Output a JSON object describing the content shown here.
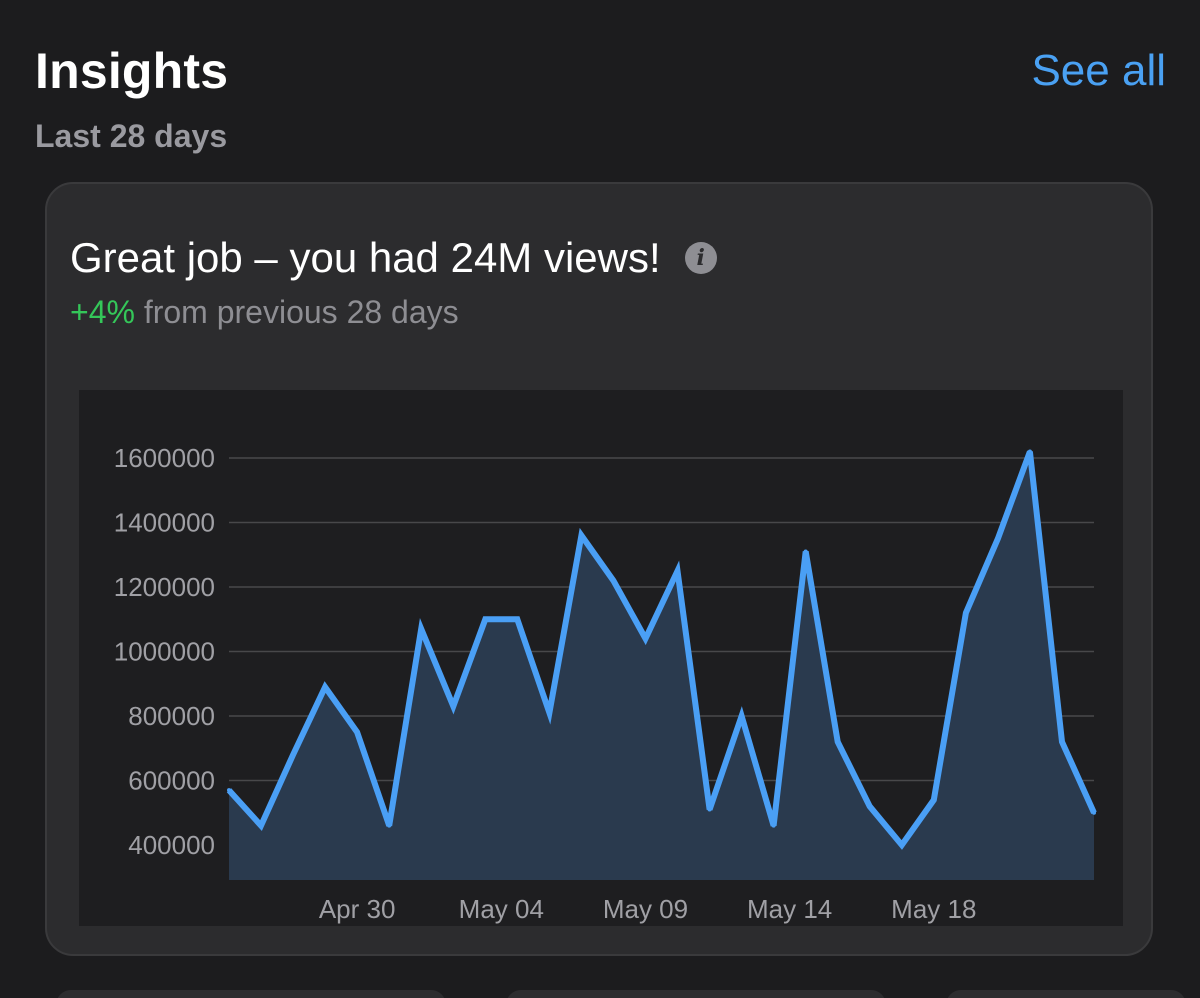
{
  "header": {
    "title": "Insights",
    "subtitle": "Last 28 days",
    "see_all": "See all"
  },
  "card": {
    "title": "Great job – you had 24M views!",
    "info_icon": "info-icon",
    "delta": "+4%",
    "delta_text": " from previous 28 days"
  },
  "colors": {
    "accent": "#4aa1f3",
    "positive": "#34c759",
    "line": "#4a9ff5",
    "area": "#2a3a4e"
  },
  "chart_data": {
    "type": "area",
    "title": "",
    "xlabel": "",
    "ylabel": "",
    "ylim": [
      300000,
      1700000
    ],
    "yticks": [
      400000,
      600000,
      800000,
      1000000,
      1200000,
      1400000,
      1600000
    ],
    "ytick_labels": [
      "400000",
      "600000",
      "800000",
      "1000000",
      "1200000",
      "1400000",
      "1600000"
    ],
    "xtick_labels": [
      "Apr 30",
      "May 04",
      "May 09",
      "May 14",
      "May 18"
    ],
    "xtick_indices": [
      4,
      8.5,
      13,
      17.5,
      22
    ],
    "series": [
      {
        "name": "Views",
        "values": [
          570000,
          460000,
          680000,
          890000,
          750000,
          460000,
          1070000,
          830000,
          1100000,
          1100000,
          810000,
          1360000,
          1220000,
          1040000,
          1250000,
          510000,
          800000,
          460000,
          1310000,
          720000,
          520000,
          400000,
          540000,
          1120000,
          1350000,
          1620000,
          720000,
          500000
        ]
      }
    ],
    "grid": true
  }
}
